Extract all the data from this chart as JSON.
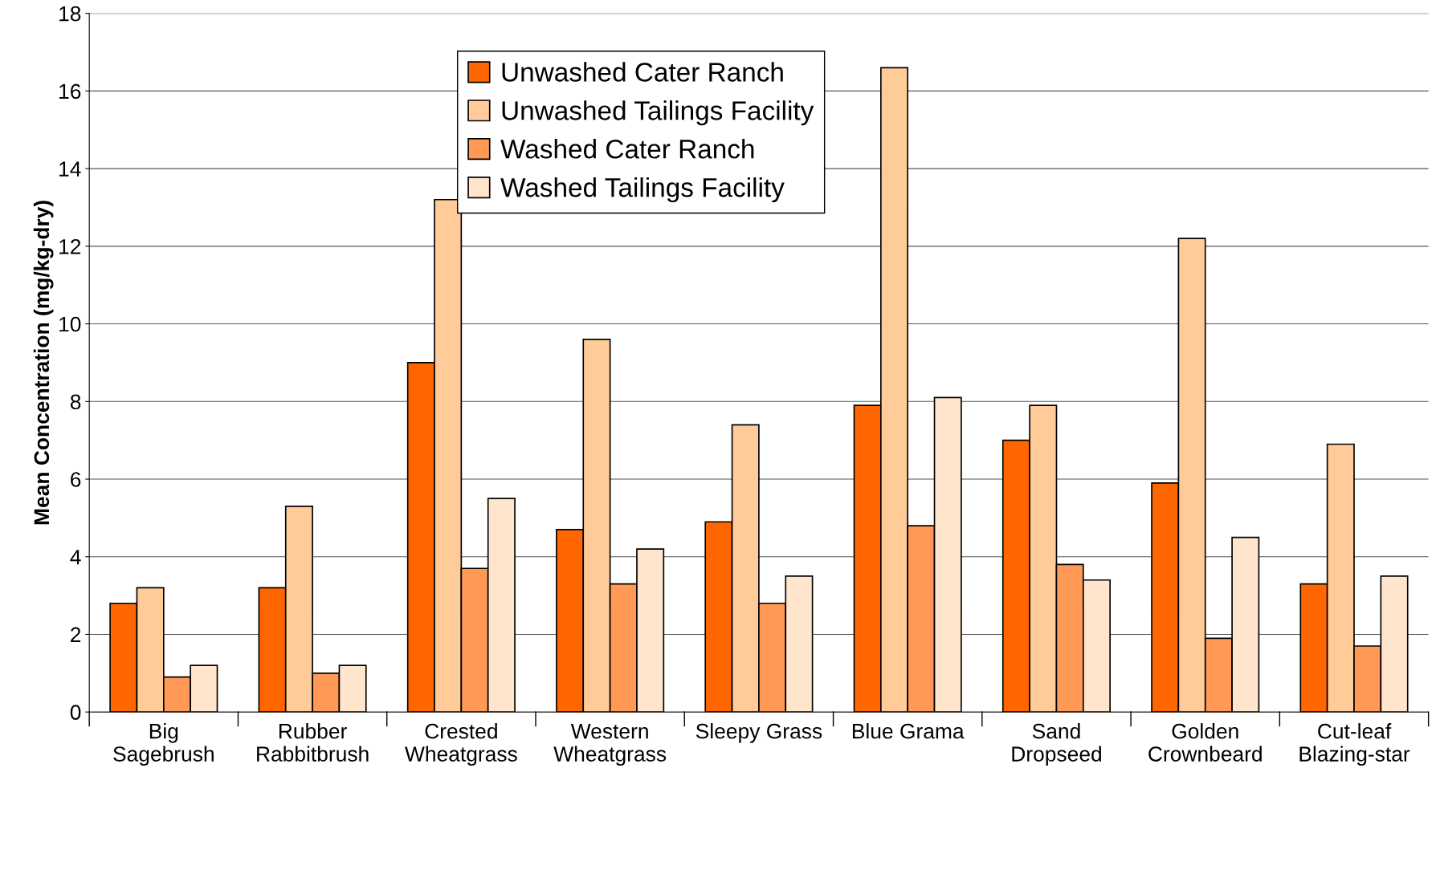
{
  "chart_data": {
    "type": "bar",
    "ylabel": "Mean Concentration (mg/kg-dry)",
    "categories": [
      "Big\nSagebrush",
      "Rubber\nRabbitbrush",
      "Crested\nWheatgrass",
      "Western\nWheatgrass",
      "Sleepy Grass",
      "Blue Grama",
      "Sand\nDropseed",
      "Golden\nCrownbeard",
      "Cut-leaf\nBlazing-star"
    ],
    "series": [
      {
        "name": "Unwashed Cater Ranch",
        "color": "#ff6600",
        "values": [
          2.8,
          3.2,
          9.0,
          4.7,
          4.9,
          7.9,
          7.0,
          5.9,
          3.3
        ]
      },
      {
        "name": "Unwashed Tailings Facility",
        "color": "#ffcc99",
        "values": [
          3.2,
          5.3,
          13.2,
          9.6,
          7.4,
          16.6,
          7.9,
          12.2,
          6.9
        ]
      },
      {
        "name": "Washed Cater Ranch",
        "color": "#ff9955",
        "values": [
          0.9,
          1.0,
          3.7,
          3.3,
          2.8,
          4.8,
          3.8,
          1.9,
          1.7
        ]
      },
      {
        "name": "Washed Tailings Facility",
        "color": "#ffe5cc",
        "values": [
          1.2,
          1.2,
          5.5,
          4.2,
          3.5,
          8.1,
          3.4,
          4.5,
          3.5
        ]
      }
    ],
    "ylim": [
      0,
      18
    ],
    "yticks": [
      0,
      2,
      4,
      6,
      8,
      10,
      12,
      14,
      16,
      18
    ],
    "grid": "y",
    "legend": "top"
  }
}
